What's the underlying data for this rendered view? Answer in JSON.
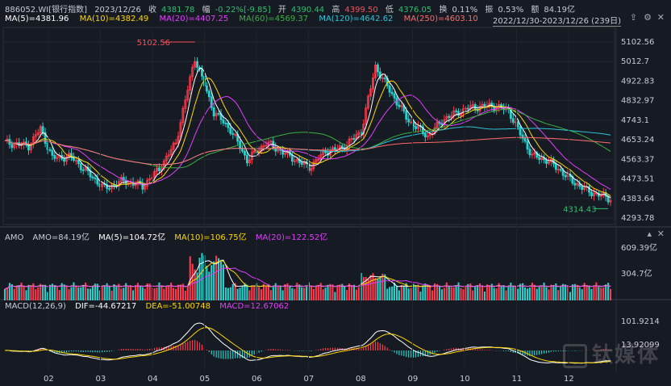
{
  "header": {
    "code": "886052.WI[银行指数]",
    "date": "2023/12/26",
    "close_label": "收",
    "close": "4381.78",
    "chg_label": "幅",
    "chg": "-0.22%[-9.85]",
    "open_label": "开",
    "open": "4390.44",
    "high_label": "高",
    "high": "4399.50",
    "low_label": "低",
    "low": "4376.05",
    "turnover_label": "换",
    "turnover": "0.11%",
    "amp_label": "振",
    "amp": "0.53%",
    "amt_label": "额",
    "amt": "84.19亿"
  },
  "ma": [
    {
      "label": "MA(5)=4381.96",
      "color": "#ffffff"
    },
    {
      "label": "MA(10)=4382.49",
      "color": "#ffd800"
    },
    {
      "label": "MA(20)=4407.25",
      "color": "#e040fb"
    },
    {
      "label": "MA(60)=4569.37",
      "color": "#3cb043"
    },
    {
      "label": "MA(120)=4642.62",
      "color": "#2ec4d6"
    },
    {
      "label": "MA(250)=4603.10",
      "color": "#ff6b6b"
    }
  ],
  "range": "2022/12/30-2023/12/26 (239日)",
  "icons": {
    "export": "export-icon",
    "settings": "settings-icon",
    "close": "close-icon"
  },
  "amo": {
    "title": "AMO",
    "amo": "AMO=84.19亿",
    "ma5": "MA(5)=104.72亿",
    "ma10": "MA(10)=106.75亿",
    "ma20": "MA(20)=122.52亿"
  },
  "macd": {
    "title": "MACD(12,26,9)",
    "dif": "DIF=-44.67217",
    "dea": "DEA=-51.00748",
    "macd": "MACD=12.67062"
  },
  "watermark": "钛媒体",
  "chart_data": {
    "type": "candlestick",
    "price_ticks": [
      "5102.56",
      "5012.7",
      "4922.83",
      "4832.97",
      "4743.1",
      "4653.24",
      "4563.37",
      "4473.51",
      "4383.64",
      "4293.78"
    ],
    "annotations": {
      "max": "5102.56",
      "min": "4314.43"
    },
    "amo_ticks": [
      "609.39亿",
      "304.7亿"
    ],
    "macd_ticks": [
      "101.9214",
      "13.92099"
    ],
    "x_ticks": [
      "02",
      "03",
      "04",
      "05",
      "06",
      "07",
      "08",
      "09",
      "10",
      "11",
      "12"
    ],
    "price_anchors": [
      [
        0,
        4640
      ],
      [
        10,
        4625
      ],
      [
        15,
        4705
      ],
      [
        20,
        4570
      ],
      [
        28,
        4575
      ],
      [
        35,
        4500
      ],
      [
        42,
        4430
      ],
      [
        50,
        4465
      ],
      [
        58,
        4440
      ],
      [
        65,
        4520
      ],
      [
        72,
        4640
      ],
      [
        80,
        5030
      ],
      [
        88,
        4780
      ],
      [
        95,
        4700
      ],
      [
        102,
        4560
      ],
      [
        110,
        4640
      ],
      [
        118,
        4590
      ],
      [
        128,
        4525
      ],
      [
        135,
        4600
      ],
      [
        142,
        4615
      ],
      [
        150,
        4690
      ],
      [
        156,
        4990
      ],
      [
        162,
        4880
      ],
      [
        170,
        4740
      ],
      [
        178,
        4670
      ],
      [
        185,
        4750
      ],
      [
        195,
        4800
      ],
      [
        205,
        4810
      ],
      [
        212,
        4790
      ],
      [
        216,
        4700
      ],
      [
        222,
        4580
      ],
      [
        228,
        4560
      ],
      [
        233,
        4520
      ],
      [
        238,
        4470
      ],
      [
        245,
        4420
      ],
      [
        250,
        4400
      ],
      [
        255,
        4382
      ]
    ],
    "colors": {
      "up": "#ff3b4d",
      "down": "#29d0cc"
    }
  }
}
